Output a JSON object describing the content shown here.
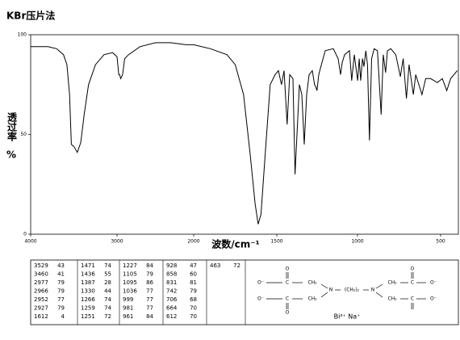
{
  "chart_data": {
    "type": "line",
    "title": "KBr压片法",
    "ylabel": "透过率",
    "ylabel_unit": "%",
    "xlabel": "波数/cm⁻¹",
    "xlim": [
      4000,
      400
    ],
    "ylim": [
      0,
      100
    ],
    "xticks": [
      4000,
      3000,
      2000,
      1500,
      1000,
      500
    ],
    "yticks": [
      0,
      50,
      100
    ],
    "color": "#000000",
    "x": [
      4000,
      3800,
      3700,
      3620,
      3580,
      3550,
      3529,
      3500,
      3460,
      3420,
      3380,
      3330,
      3250,
      3150,
      3050,
      3000,
      2977,
      2966,
      2952,
      2927,
      2900,
      2850,
      2700,
      2500,
      2300,
      2100,
      2000,
      1900,
      1800,
      1750,
      1700,
      1660,
      1630,
      1612,
      1595,
      1570,
      1540,
      1510,
      1490,
      1471,
      1455,
      1436,
      1420,
      1400,
      1387,
      1375,
      1360,
      1345,
      1330,
      1315,
      1300,
      1280,
      1266,
      1259,
      1251,
      1240,
      1227,
      1200,
      1150,
      1120,
      1105,
      1095,
      1080,
      1050,
      1036,
      1020,
      999,
      990,
      981,
      970,
      961,
      950,
      940,
      928,
      915,
      900,
      880,
      858,
      845,
      831,
      820,
      800,
      770,
      742,
      725,
      706,
      690,
      664,
      650,
      612,
      590,
      560,
      520,
      490,
      463,
      440,
      420,
      400
    ],
    "values": [
      94,
      94,
      93,
      90,
      85,
      70,
      45,
      44,
      41,
      46,
      60,
      75,
      85,
      90,
      91,
      89,
      80,
      80,
      78,
      80,
      88,
      90,
      94,
      96,
      96,
      95,
      95,
      93,
      90,
      85,
      70,
      40,
      15,
      5,
      10,
      40,
      75,
      80,
      82,
      75,
      82,
      55,
      80,
      78,
      30,
      50,
      75,
      70,
      45,
      70,
      80,
      82,
      75,
      74,
      72,
      80,
      84,
      92,
      93,
      88,
      80,
      86,
      90,
      92,
      77,
      90,
      77,
      88,
      77,
      88,
      84,
      92,
      85,
      47,
      88,
      93,
      92,
      60,
      90,
      81,
      92,
      93,
      90,
      79,
      88,
      68,
      85,
      70,
      80,
      70,
      78,
      78,
      76,
      78,
      72,
      78,
      80,
      82
    ]
  },
  "peak_table": {
    "columns": [
      [
        [
          3529,
          43
        ],
        [
          3460,
          41
        ],
        [
          2977,
          79
        ],
        [
          2966,
          79
        ],
        [
          2952,
          77
        ],
        [
          2927,
          79
        ],
        [
          1612,
          4
        ]
      ],
      [
        [
          1471,
          74
        ],
        [
          1436,
          55
        ],
        [
          1387,
          28
        ],
        [
          1330,
          44
        ],
        [
          1266,
          74
        ],
        [
          1259,
          74
        ],
        [
          1251,
          72
        ]
      ],
      [
        [
          1227,
          84
        ],
        [
          1105,
          79
        ],
        [
          1095,
          86
        ],
        [
          1036,
          77
        ],
        [
          999,
          77
        ],
        [
          981,
          77
        ],
        [
          961,
          84
        ]
      ],
      [
        [
          928,
          47
        ],
        [
          858,
          60
        ],
        [
          831,
          81
        ],
        [
          742,
          79
        ],
        [
          706,
          68
        ],
        [
          664,
          70
        ],
        [
          612,
          70
        ]
      ],
      [
        [
          463,
          72
        ]
      ]
    ]
  },
  "structure": {
    "atoms": [
      "O",
      "O⁻",
      "C",
      "CH₂",
      "N",
      "(CH₂)₂",
      "N",
      "CH₂",
      "C",
      "O⁻",
      "O",
      "O⁻",
      "C",
      "CH₂",
      "CH₂",
      "C",
      "O⁻",
      "O"
    ],
    "counterions": "Bi³⁺  Na⁺"
  }
}
